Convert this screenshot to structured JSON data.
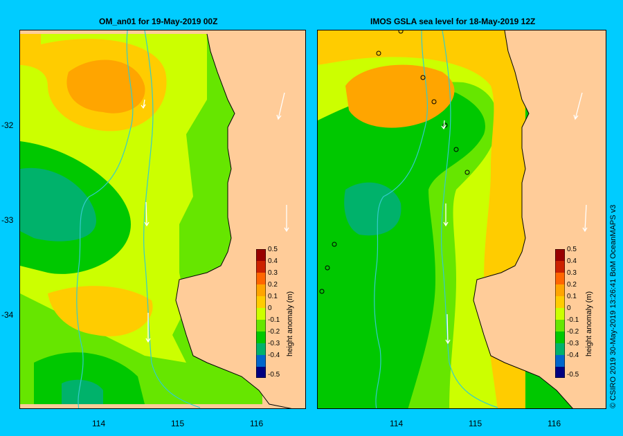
{
  "panels": [
    {
      "title": "OM_an01  for 19-May-2019 00Z"
    },
    {
      "title": "IMOS  GSLA sea level   for 18-May-2019 12Z"
    }
  ],
  "axis": {
    "lat_labels": [
      "-32",
      "-33",
      "-34"
    ],
    "lon_labels": [
      "114",
      "115",
      "116"
    ]
  },
  "colorbar": {
    "title": "height anomaly  (m)",
    "ticks": [
      "0.5",
      "0.4",
      "0.3",
      "0.2",
      "0.1",
      "0",
      "-0.1",
      "-0.2",
      "-0.3",
      "-0.4",
      "-0.5"
    ]
  },
  "credit": "© CSIRO 2019     30-May-2019 13:26:41 BoM OceanMAPS v3",
  "colors": {
    "background": "#00ccff",
    "land": "#ffcc99",
    "bathymetry": "#33cccc",
    "anomaly_0.25": "#ffa500",
    "anomaly_0.15": "#ffcc00",
    "anomaly_0.05": "#ccff00",
    "anomaly_-0.05": "#66e600",
    "anomaly_-0.15": "#00c800",
    "anomaly_-0.25": "#00b26b"
  }
}
